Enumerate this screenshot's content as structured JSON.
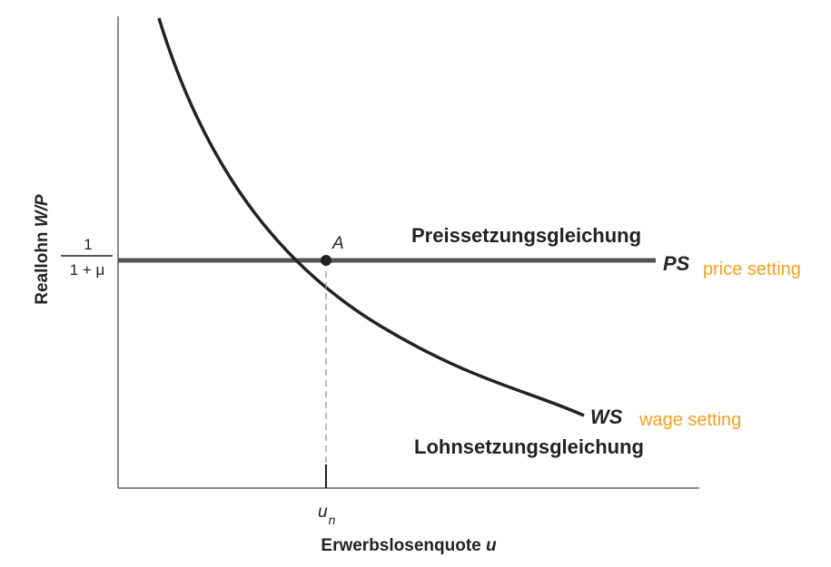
{
  "diagram": {
    "x_axis_label": "Erwerbslosenquote",
    "x_axis_symbol": "u",
    "y_axis_label": "Reallohn",
    "y_axis_symbol": "W/P",
    "y_tick_numerator": "1",
    "y_tick_denominator": "1 + μ",
    "x_tick_base": "u",
    "x_tick_subscript": "n",
    "point_label": "A",
    "ps_title": "Preissetzungsgleichung",
    "ps_symbol": "PS",
    "ps_note": "price setting",
    "ws_title": "Lohnsetzungsgleichung",
    "ws_symbol": "WS",
    "ws_note": "wage setting",
    "colors": {
      "axis": "#666666",
      "ps_line": "#555555",
      "ws_curve": "#222222",
      "guide": "#999999",
      "note": "#f0a020"
    }
  }
}
